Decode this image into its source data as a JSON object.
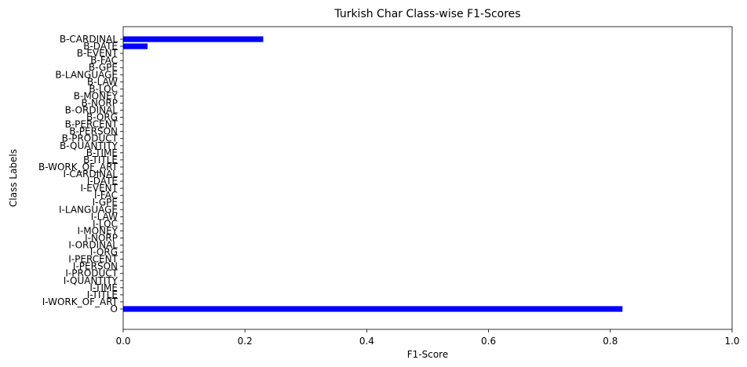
{
  "chart_data": {
    "type": "bar",
    "orientation": "horizontal",
    "title": "Turkish Char Class-wise F1-Scores",
    "xlabel": "F1-Score",
    "ylabel": "Class Labels",
    "xlim": [
      0,
      1.0
    ],
    "xticks": [
      "0.0",
      "0.2",
      "0.4",
      "0.6",
      "0.8",
      "1.0"
    ],
    "grid": false,
    "bar_color": "#0000ff",
    "categories": [
      "B-CARDINAL",
      "B-DATE",
      "B-EVENT",
      "B-FAC",
      "B-GPE",
      "B-LANGUAGE",
      "B-LAW",
      "B-LOC",
      "B-MONEY",
      "B-NORP",
      "B-ORDINAL",
      "B-ORG",
      "B-PERCENT",
      "B-PERSON",
      "B-PRODUCT",
      "B-QUANTITY",
      "B-TIME",
      "B-TITLE",
      "B-WORK_OF_ART",
      "I-CARDINAL",
      "I-DATE",
      "I-EVENT",
      "I-FAC",
      "I-GPE",
      "I-LANGUAGE",
      "I-LAW",
      "I-LOC",
      "I-MONEY",
      "I-NORP",
      "I-ORDINAL",
      "I-ORG",
      "I-PERCENT",
      "I-PERSON",
      "I-PRODUCT",
      "I-QUANTITY",
      "I-TIME",
      "I-TITLE",
      "I-WORK_OF_ART",
      "O"
    ],
    "values": [
      0.23,
      0.04,
      0,
      0,
      0,
      0,
      0,
      0,
      0,
      0,
      0,
      0,
      0,
      0,
      0,
      0,
      0,
      0,
      0,
      0,
      0,
      0,
      0,
      0,
      0,
      0,
      0,
      0,
      0,
      0,
      0,
      0,
      0,
      0,
      0,
      0,
      0,
      0,
      0.82
    ]
  }
}
